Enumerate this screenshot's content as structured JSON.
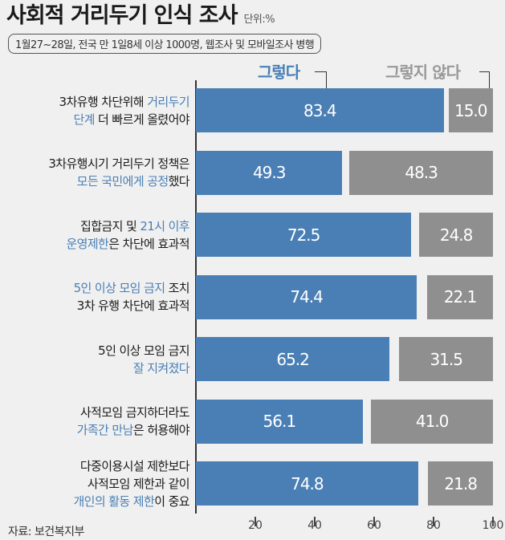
{
  "title": "사회적 거리두기 인식 조사",
  "unit": "단위:%",
  "subtitle": "1월27~28일,  전국 만 1일8세 이상 1000명, 웹조사 및 모바일조사 병행",
  "source": "자료: 보건복지부",
  "colors": {
    "yes": "#4a7fb5",
    "no": "#8f8f8f",
    "highlight": "#4a7fb5"
  },
  "chart_data": {
    "type": "bar",
    "orientation": "horizontal-stacked",
    "xlim": [
      0,
      100
    ],
    "x_ticks": [
      "20",
      "40",
      "60",
      "80",
      "100"
    ],
    "series": [
      {
        "name": "그렇다",
        "values": [
          83.4,
          49.3,
          72.5,
          74.4,
          65.2,
          56.1,
          74.8
        ]
      },
      {
        "name": "그렇지 않다",
        "values": [
          15.0,
          48.3,
          24.8,
          22.1,
          31.5,
          41.0,
          21.8
        ]
      }
    ],
    "value_labels_yes": [
      "83.4",
      "49.3",
      "72.5",
      "74.4",
      "65.2",
      "56.1",
      "74.8"
    ],
    "value_labels_no": [
      "15.0",
      "48.3",
      "24.8",
      "22.1",
      "31.5",
      "41.0",
      "21.8"
    ],
    "categories": [
      [
        [
          [
            "3차유행 차단위해 ",
            false
          ],
          [
            "거리두기",
            true
          ]
        ],
        [
          [
            "단계",
            true
          ],
          [
            " 더 빠르게 올렸어야",
            false
          ]
        ]
      ],
      [
        [
          [
            "3차유행시기 거리두기 정책은",
            false
          ]
        ],
        [
          [
            "모든 국민에게 공정",
            true
          ],
          [
            "했다",
            false
          ]
        ]
      ],
      [
        [
          [
            "집합금지 및 ",
            false
          ],
          [
            "21시 이후",
            true
          ]
        ],
        [
          [
            "운영제한",
            true
          ],
          [
            "은 차단에 효과적",
            false
          ]
        ]
      ],
      [
        [
          [
            "5인 이상 모임 금지",
            true
          ],
          [
            " 조치",
            false
          ]
        ],
        [
          [
            "3차 유행 차단에 효과적",
            false
          ]
        ]
      ],
      [
        [
          [
            "5인 이상 모임 금지",
            false
          ]
        ],
        [
          [
            "잘 지켜졌다",
            true
          ]
        ]
      ],
      [
        [
          [
            "사적모임 금지하더라도",
            false
          ]
        ],
        [
          [
            "가족간 만남",
            true
          ],
          [
            "은 허용해야",
            false
          ]
        ]
      ],
      [
        [
          [
            "다중이용시설 제한보다",
            false
          ]
        ],
        [
          [
            "사적모임 제한과 같이",
            false
          ]
        ],
        [
          [
            "개인의 활동 제한",
            true
          ],
          [
            "이 중요",
            false
          ]
        ]
      ]
    ]
  }
}
